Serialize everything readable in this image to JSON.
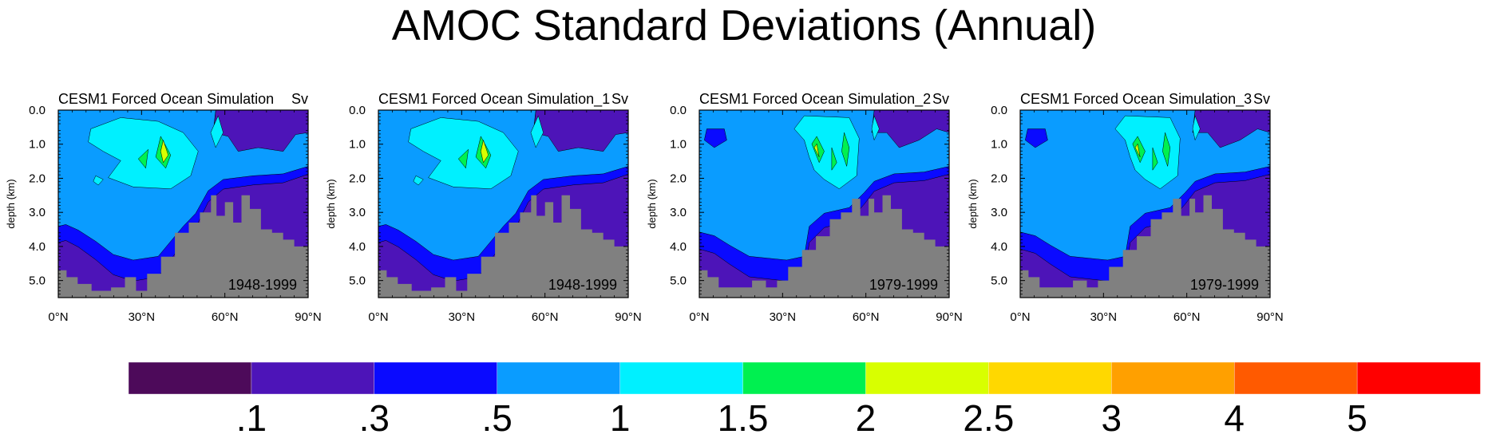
{
  "title": "AMOC Standard Deviations (Annual)",
  "panels": [
    {
      "subtitle": "CESM1 Forced Ocean Simulation",
      "units": "Sv",
      "period": "1948-1999",
      "variant": "a"
    },
    {
      "subtitle": "CESM1 Forced Ocean Simulation_1",
      "units": "Sv",
      "period": "1948-1999",
      "variant": "a"
    },
    {
      "subtitle": "CESM1 Forced Ocean Simulation_2",
      "units": "Sv",
      "period": "1979-1999",
      "variant": "b"
    },
    {
      "subtitle": "CESM1 Forced Ocean Simulation_3",
      "units": "Sv",
      "period": "1979-1999",
      "variant": "b"
    }
  ],
  "colorbar": {
    "colors": [
      "#4d0a5a",
      "#4d14b8",
      "#0a0aff",
      "#0a9cff",
      "#00f0ff",
      "#00f050",
      "#d8ff00",
      "#ffd800",
      "#ffa000",
      "#ff5a00",
      "#ff0000"
    ],
    "labels": [
      ".1",
      ".3",
      ".5",
      "1",
      "1.5",
      "2",
      "2.5",
      "3",
      "4",
      "5"
    ]
  },
  "chart_data": {
    "type": "heatmap",
    "title": "AMOC Standard Deviations (Annual)",
    "xlabel": "",
    "ylabel": "depth (km)",
    "units": "Sv",
    "xlim": [
      0,
      90
    ],
    "ylim": [
      5.5,
      0
    ],
    "x_ticks": [
      "0°N",
      "30°N",
      "60°N",
      "90°N"
    ],
    "y_ticks": [
      "0.0",
      "1.0",
      "2.0",
      "3.0",
      "4.0",
      "5.0"
    ],
    "contour_levels": [
      0.1,
      0.3,
      0.5,
      1,
      1.5,
      2,
      2.5,
      3,
      4,
      5
    ],
    "panels": [
      {
        "name": "CESM1 Forced Ocean Simulation",
        "period": "1948-1999",
        "max_sd_approx": 2.5,
        "max_location": {
          "lat": 42,
          "depth_km": 1.5
        }
      },
      {
        "name": "CESM1 Forced Ocean Simulation_1",
        "period": "1948-1999",
        "max_sd_approx": 2.5,
        "max_location": {
          "lat": 42,
          "depth_km": 1.5
        }
      },
      {
        "name": "CESM1 Forced Ocean Simulation_2",
        "period": "1979-1999",
        "max_sd_approx": 2.0,
        "max_location": {
          "lat": 45,
          "depth_km": 1.5
        }
      },
      {
        "name": "CESM1 Forced Ocean Simulation_3",
        "period": "1979-1999",
        "max_sd_approx": 2.0,
        "max_location": {
          "lat": 45,
          "depth_km": 1.5
        }
      }
    ],
    "bathymetry_color": "#808080"
  }
}
